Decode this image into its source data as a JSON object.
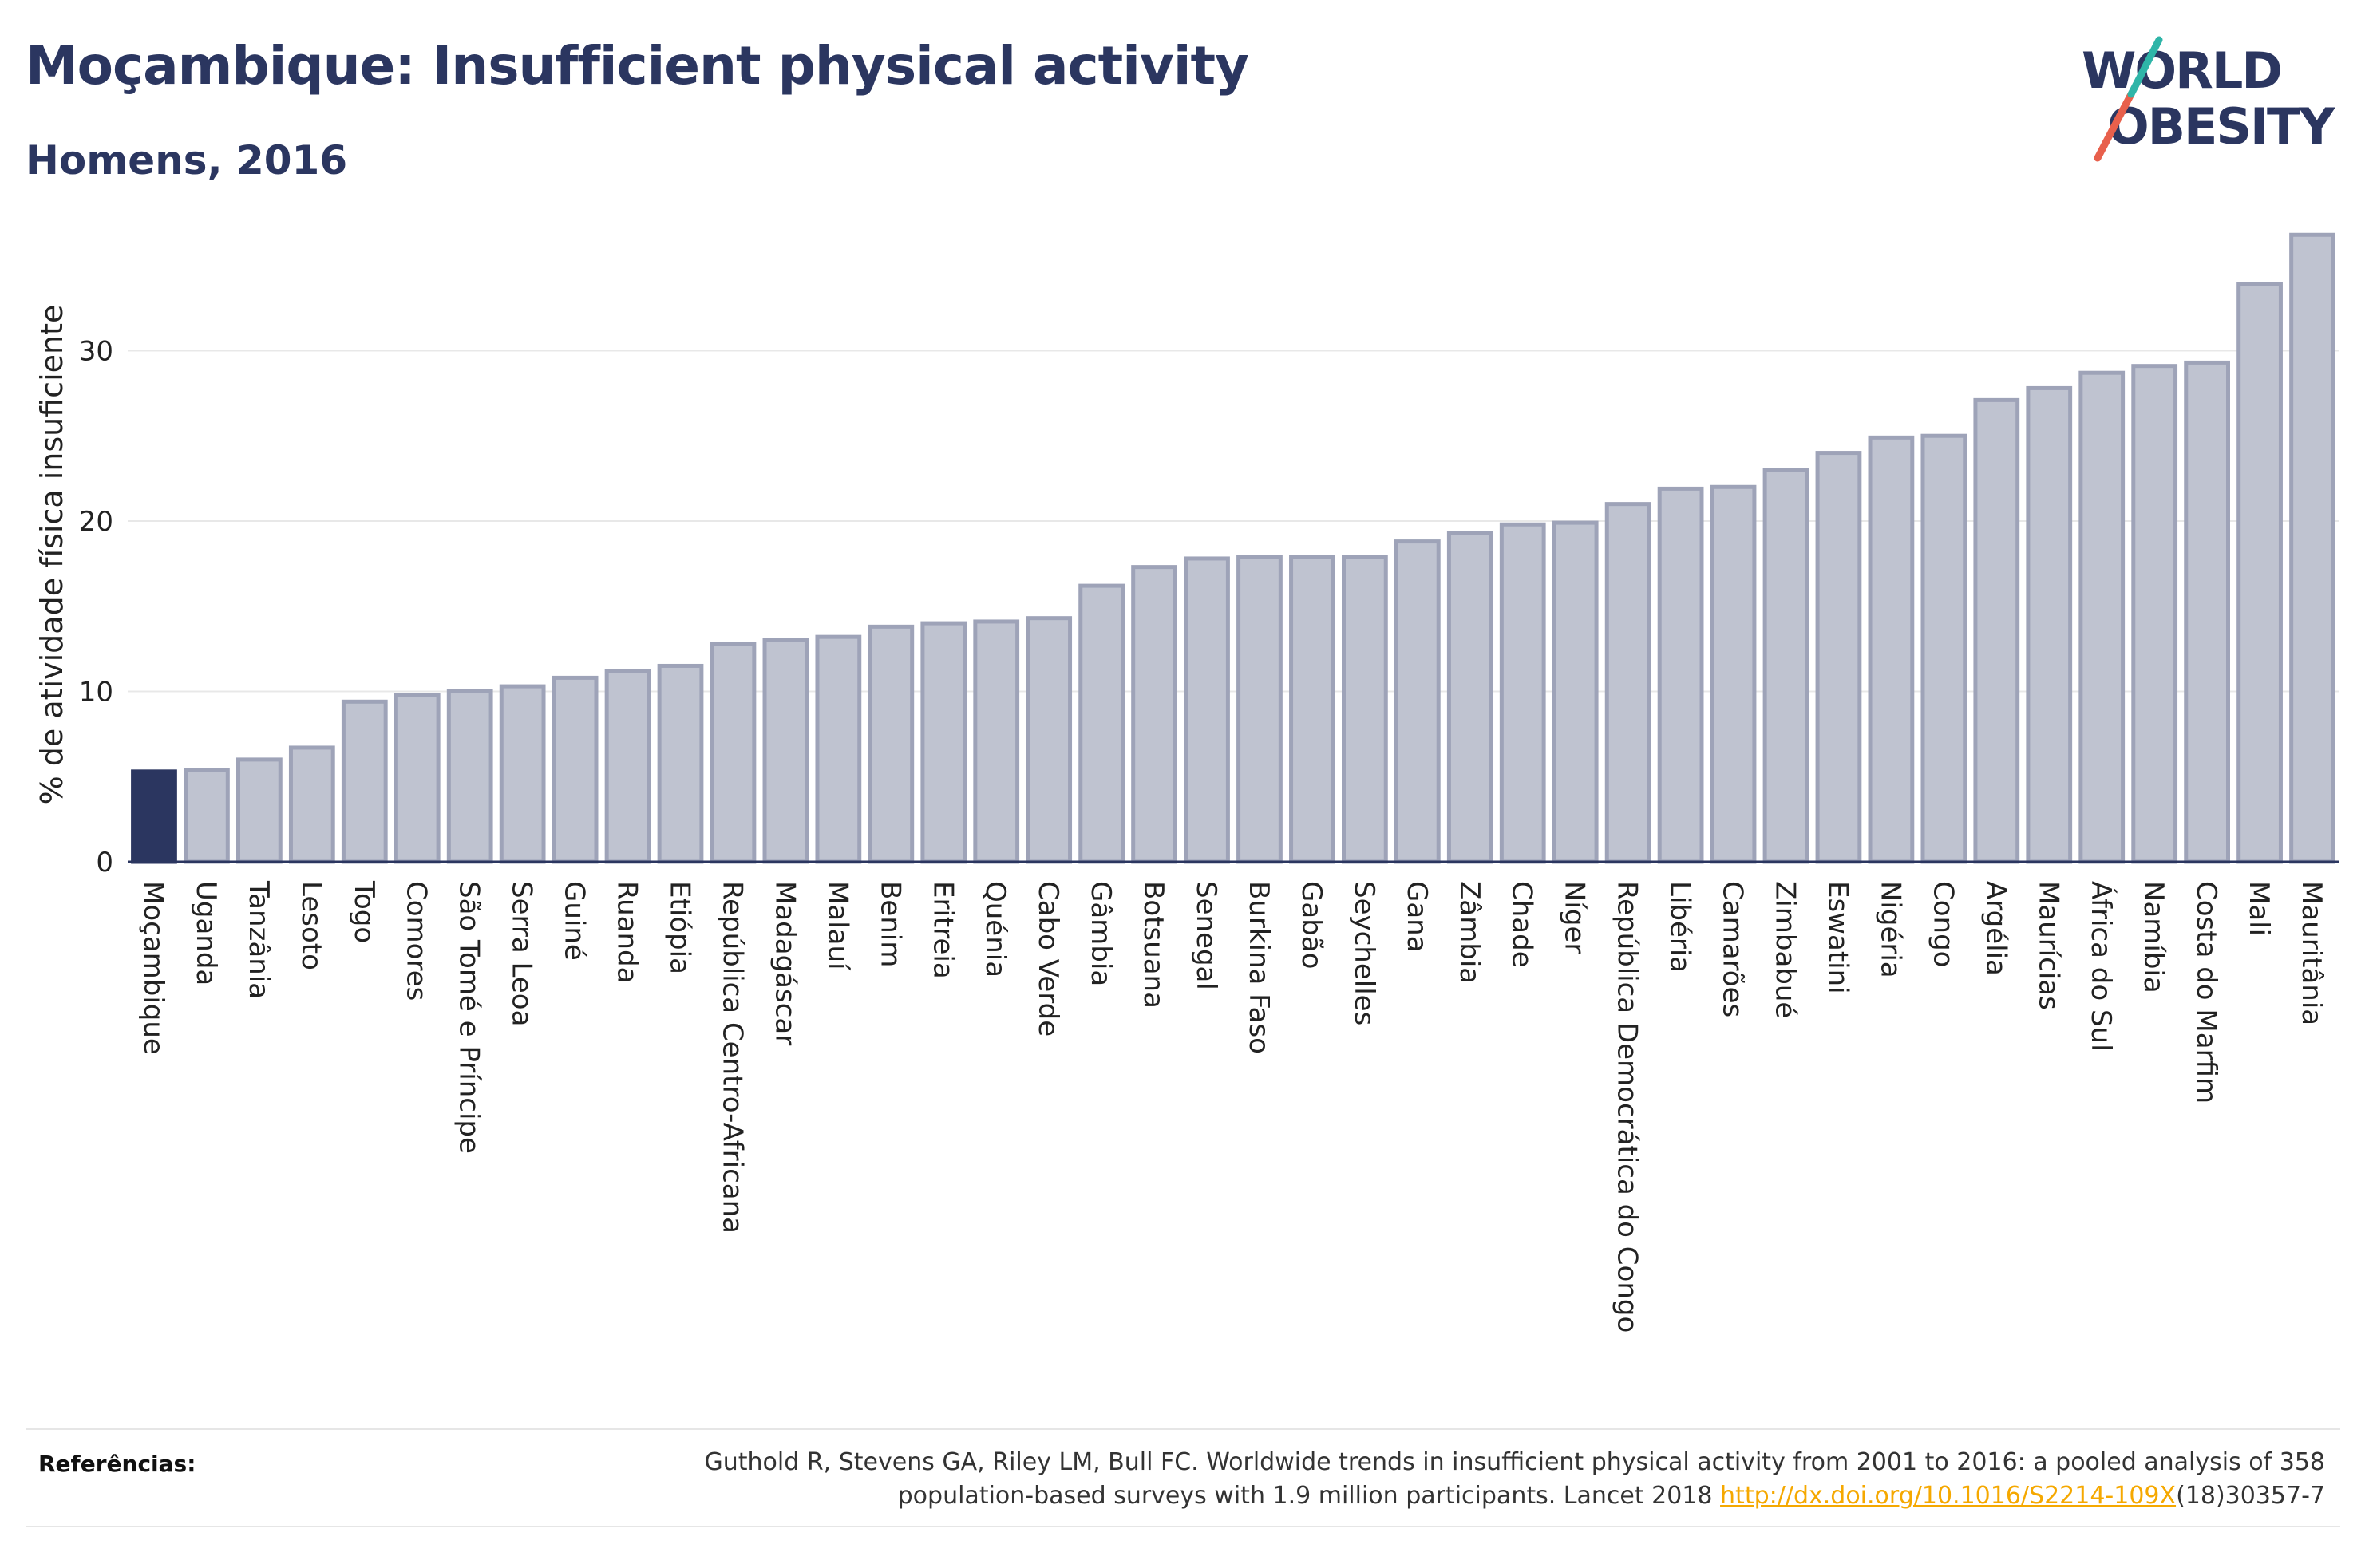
{
  "header": {
    "title": "Moçambique: Insufficient physical activity",
    "subtitle": "Homens, 2016"
  },
  "logo": {
    "line1": "WORLD",
    "line2": "OBESITY",
    "text_color": "#2b3660",
    "slash_colors": [
      "#e8604c",
      "#2fb5a8"
    ]
  },
  "colors": {
    "highlight_bar": "#2b3660",
    "bar_fill": "#bfc3d0",
    "bar_stroke": "#9ea3b8",
    "axis": "#2b3660",
    "grid": "#e8e8e8",
    "link": "#f5a800"
  },
  "chart_data": {
    "type": "bar",
    "title": "Moçambique: Insufficient physical activity",
    "subtitle": "Homens, 2016",
    "xlabel": "",
    "ylabel": "% de atividade física insuficiente",
    "ylim": [
      0,
      37
    ],
    "yticks": [
      0,
      10,
      20,
      30
    ],
    "grid": true,
    "highlight": "Moçambique",
    "categories": [
      "Moçambique",
      "Uganda",
      "Tanzânia",
      "Lesoto",
      "Togo",
      "Comores",
      "São Tomé e Príncipe",
      "Serra Leoa",
      "Guiné",
      "Ruanda",
      "Etiópia",
      "República Centro-Africana",
      "Madagáscar",
      "Malauí",
      "Benim",
      "Eritreia",
      "Quénia",
      "Cabo Verde",
      "Gâmbia",
      "Botsuana",
      "Senegal",
      "Burkina Faso",
      "Gabão",
      "Seychelles",
      "Gana",
      "Zâmbia",
      "Chade",
      "Níger",
      "República Democrática do Congo",
      "Libéria",
      "Camarões",
      "Zimbabué",
      "Eswatini",
      "Nigéria",
      "Congo",
      "Argélia",
      "Maurícias",
      "África do Sul",
      "Namíbia",
      "Costa do Marfim",
      "Mali",
      "Mauritânia"
    ],
    "values": [
      5.3,
      5.4,
      6.0,
      6.7,
      9.4,
      9.8,
      10.0,
      10.3,
      10.8,
      11.2,
      11.5,
      12.8,
      13.0,
      13.2,
      13.8,
      14.0,
      14.1,
      14.3,
      16.2,
      17.3,
      17.8,
      17.9,
      17.9,
      17.9,
      18.8,
      19.3,
      19.8,
      19.9,
      21.0,
      21.9,
      22.0,
      23.0,
      24.0,
      24.9,
      25.0,
      27.1,
      27.8,
      28.7,
      29.1,
      29.3,
      33.9,
      36.8
    ]
  },
  "references": {
    "label": "Referências:",
    "text_part1": "Guthold R, Stevens GA, Riley LM, Bull FC. Worldwide trends in insufficient physical activity from 2001 to 2016: a pooled analysis of 358",
    "text_part2": "population-based surveys with 1.9 million participants. Lancet 2018 ",
    "link_text": "http://dx.doi.org/10.1016/S2214-109X",
    "text_part3": "(18)30357-7"
  }
}
